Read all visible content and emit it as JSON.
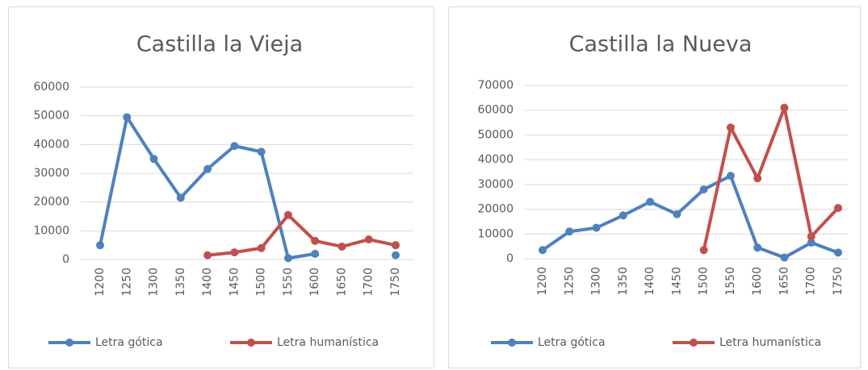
{
  "chart_data": [
    {
      "type": "line",
      "title": "Castilla la Vieja",
      "categories": [
        "1200",
        "1250",
        "1300",
        "1350",
        "1400",
        "1450",
        "1500",
        "1550",
        "1600",
        "1650",
        "1700",
        "1750"
      ],
      "series": [
        {
          "name": "Letra gótica",
          "color": "#4f81bd",
          "values": [
            5000,
            49500,
            35000,
            21500,
            31500,
            39500,
            37500,
            500,
            2000,
            null,
            null,
            1500
          ]
        },
        {
          "name": "Letra humanística",
          "color": "#c0504d",
          "values": [
            null,
            null,
            null,
            null,
            1500,
            2500,
            4000,
            15500,
            6500,
            4500,
            7000,
            5000
          ]
        }
      ],
      "ylim": [
        0,
        60000
      ],
      "yticks": [
        0,
        10000,
        20000,
        30000,
        40000,
        50000,
        60000
      ],
      "grid": true,
      "legend": "bottom"
    },
    {
      "type": "line",
      "title": "Castilla la Nueva",
      "categories": [
        "1200",
        "1250",
        "1300",
        "1350",
        "1400",
        "1450",
        "1500",
        "1550",
        "1600",
        "1650",
        "1700",
        "1750"
      ],
      "series": [
        {
          "name": "Letra gótica",
          "color": "#4f81bd",
          "values": [
            3500,
            11000,
            12500,
            17500,
            23000,
            18000,
            28000,
            33500,
            4500,
            500,
            6500,
            2500
          ]
        },
        {
          "name": "Letra humanística",
          "color": "#c0504d",
          "values": [
            null,
            null,
            null,
            null,
            null,
            null,
            3500,
            53000,
            32500,
            61000,
            9000,
            20500
          ]
        }
      ],
      "ylim": [
        0,
        70000
      ],
      "yticks": [
        0,
        10000,
        20000,
        30000,
        40000,
        50000,
        60000,
        70000
      ],
      "grid": true,
      "legend": "bottom"
    }
  ]
}
